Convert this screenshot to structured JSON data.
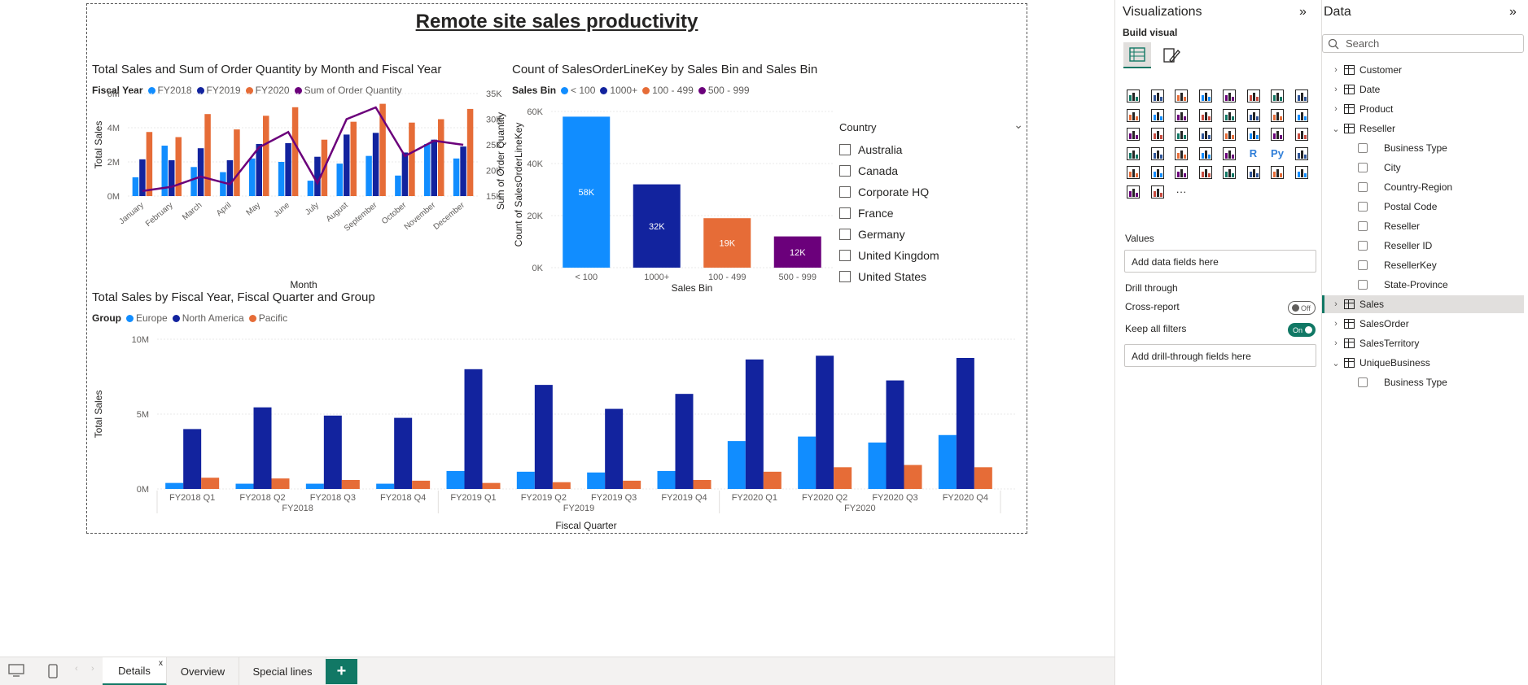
{
  "report": {
    "title": "Remote site sales productivity"
  },
  "visual1": {
    "title": "Total Sales and Sum of Order Quantity by Month and Fiscal Year",
    "legend_title": "Fiscal Year",
    "legend": [
      "FY2018",
      "FY2019",
      "FY2020",
      "Sum of Order Quantity"
    ],
    "xlabel": "Month",
    "ylabel": "Total Sales",
    "y2label": "Sum of Order Quantity",
    "yticks": [
      "6M",
      "4M",
      "2M",
      "0M"
    ],
    "y2ticks": [
      "35K",
      "30K",
      "25K",
      "20K",
      "15K"
    ]
  },
  "visual2": {
    "title": "Count of SalesOrderLineKey by Sales Bin and Sales Bin",
    "legend_title": "Sales Bin",
    "legend": [
      "< 100",
      "1000+",
      "100 - 499",
      "500 - 999"
    ],
    "xlabel": "Sales Bin",
    "ylabel": "Count of SalesOrderLineKey",
    "yticks": [
      "60K",
      "40K",
      "20K",
      "0K"
    ],
    "data_labels": [
      "58K",
      "32K",
      "19K",
      "12K"
    ]
  },
  "visual3": {
    "title": "Total Sales by Fiscal Year, Fiscal Quarter and Group",
    "legend_title": "Group",
    "legend": [
      "Europe",
      "North America",
      "Pacific"
    ],
    "xlabel": "Fiscal Quarter",
    "ylabel": "Total Sales",
    "yticks": [
      "10M",
      "5M",
      "0M"
    ],
    "year_labels": [
      "FY2018",
      "FY2019",
      "FY2020"
    ]
  },
  "slicer": {
    "header": "Country",
    "items": [
      "Australia",
      "Canada",
      "Corporate HQ",
      "France",
      "Germany",
      "United Kingdom",
      "United States"
    ]
  },
  "colors": {
    "fy2018": "#118DFF",
    "fy2019": "#12239E",
    "fy2020": "#E66C37",
    "order_qty": "#6B007B",
    "accent": "#117865"
  },
  "chart_data": [
    {
      "type": "bar",
      "title": "Total Sales and Sum of Order Quantity by Month and Fiscal Year",
      "xlabel": "Month",
      "ylabel": "Total Sales",
      "y2label": "Sum of Order Quantity",
      "categories": [
        "January",
        "February",
        "March",
        "April",
        "May",
        "June",
        "July",
        "August",
        "September",
        "October",
        "November",
        "December"
      ],
      "ylim": [
        0,
        6000000
      ],
      "y2lim": [
        15000,
        35000
      ],
      "series": [
        {
          "name": "FY2018",
          "values": [
            1100000,
            2950000,
            1700000,
            1400000,
            2200000,
            2000000,
            900000,
            1900000,
            2350000,
            1200000,
            3050000,
            2200000
          ]
        },
        {
          "name": "FY2019",
          "values": [
            2150000,
            2100000,
            2800000,
            2100000,
            3050000,
            3100000,
            2300000,
            3600000,
            3700000,
            2550000,
            3300000,
            2900000
          ]
        },
        {
          "name": "FY2020",
          "values": [
            3750000,
            3450000,
            4800000,
            3900000,
            4700000,
            5200000,
            3300000,
            4350000,
            5400000,
            4300000,
            4500000,
            5100000
          ]
        },
        {
          "name": "Sum of Order Quantity",
          "type": "line",
          "axis": "y2",
          "values": [
            16000,
            16800,
            18800,
            17300,
            24500,
            27500,
            17500,
            30000,
            32300,
            22800,
            25800,
            25000
          ]
        }
      ]
    },
    {
      "type": "bar",
      "title": "Count of SalesOrderLineKey by Sales Bin and Sales Bin",
      "xlabel": "Sales Bin",
      "ylabel": "Count of SalesOrderLineKey",
      "categories": [
        "< 100",
        "1000+",
        "100 - 499",
        "500 - 999"
      ],
      "values": [
        58000,
        32000,
        19000,
        12000
      ],
      "ylim": [
        0,
        60000
      ]
    },
    {
      "type": "bar",
      "title": "Total Sales by Fiscal Year, Fiscal Quarter and Group",
      "xlabel": "Fiscal Quarter",
      "ylabel": "Total Sales",
      "categories": [
        "FY2018 Q1",
        "FY2018 Q2",
        "FY2018 Q3",
        "FY2018 Q4",
        "FY2019 Q1",
        "FY2019 Q2",
        "FY2019 Q3",
        "FY2019 Q4",
        "FY2020 Q1",
        "FY2020 Q2",
        "FY2020 Q3",
        "FY2020 Q4"
      ],
      "ylim": [
        0,
        10000000
      ],
      "series": [
        {
          "name": "Europe",
          "values": [
            400000,
            350000,
            350000,
            350000,
            1200000,
            1150000,
            1100000,
            1200000,
            3200000,
            3500000,
            3100000,
            3600000
          ]
        },
        {
          "name": "North America",
          "values": [
            4000000,
            5450000,
            4900000,
            4750000,
            8000000,
            6950000,
            5350000,
            6350000,
            8650000,
            8900000,
            7250000,
            8750000
          ]
        },
        {
          "name": "Pacific",
          "values": [
            750000,
            700000,
            600000,
            550000,
            400000,
            450000,
            550000,
            600000,
            1150000,
            1450000,
            1600000,
            1450000
          ]
        }
      ]
    }
  ],
  "tabs": {
    "items": [
      "Details",
      "Overview",
      "Special lines"
    ],
    "close": "x",
    "add": "+"
  },
  "viz_pane": {
    "title": "Visualizations",
    "build_visual": "Build visual",
    "values_label": "Values",
    "values_placeholder": "Add data fields here",
    "drill_label": "Drill through",
    "cross_report": "Cross-report",
    "cross_report_state": "Off",
    "keep_filters": "Keep all filters",
    "keep_filters_state": "On",
    "drill_placeholder": "Add drill-through fields here",
    "more": "···"
  },
  "data_pane": {
    "title": "Data",
    "search_placeholder": "Search",
    "tree": [
      {
        "label": "Customer",
        "kind": "table",
        "expanded": false
      },
      {
        "label": "Date",
        "kind": "table",
        "expanded": false
      },
      {
        "label": "Product",
        "kind": "table",
        "expanded": false
      },
      {
        "label": "Reseller",
        "kind": "table",
        "expanded": true
      },
      {
        "label": "Business Type",
        "kind": "field"
      },
      {
        "label": "City",
        "kind": "field"
      },
      {
        "label": "Country-Region",
        "kind": "field"
      },
      {
        "label": "Postal Code",
        "kind": "field"
      },
      {
        "label": "Reseller",
        "kind": "field"
      },
      {
        "label": "Reseller ID",
        "kind": "field"
      },
      {
        "label": "ResellerKey",
        "kind": "field"
      },
      {
        "label": "State-Province",
        "kind": "field"
      },
      {
        "label": "Sales",
        "kind": "table",
        "expanded": false,
        "highlighted": true
      },
      {
        "label": "SalesOrder",
        "kind": "table",
        "expanded": false
      },
      {
        "label": "SalesTerritory",
        "kind": "table",
        "expanded": false
      },
      {
        "label": "UniqueBusiness",
        "kind": "table",
        "expanded": true
      },
      {
        "label": "Business Type",
        "kind": "field"
      }
    ]
  }
}
